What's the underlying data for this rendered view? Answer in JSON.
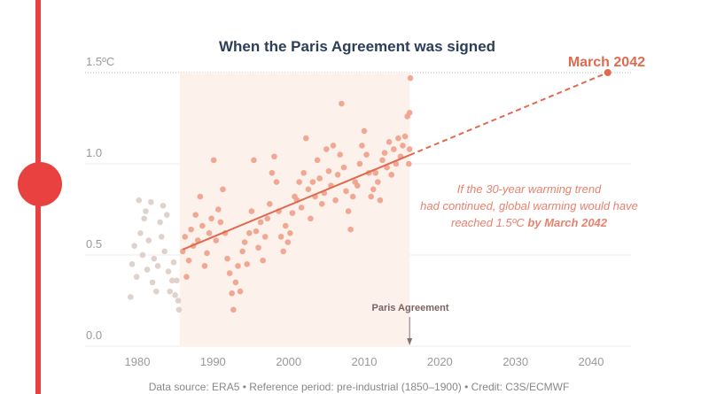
{
  "chart_data": {
    "type": "scatter",
    "title": "When the Paris Agreement was signed",
    "xlim": [
      1975,
      2045
    ],
    "ylim": [
      0,
      1.5
    ],
    "x_ticks": [
      "1980",
      "1990",
      "2000",
      "2010",
      "2020",
      "2030",
      "2040"
    ],
    "y_ticks": [
      {
        "v": 0,
        "label": "0.0"
      },
      {
        "v": 0.5,
        "label": "0.5"
      },
      {
        "v": 1.0,
        "label": "1.0"
      },
      {
        "v": 1.5,
        "label": "1.5ºC"
      }
    ],
    "grid": true,
    "colors": {
      "pre": "#dcccc6",
      "post": "#f0a08a",
      "trend": "#e06a50",
      "shade": "#fdf1ec",
      "title": "#2d3e5a",
      "accent": "#e8413f"
    },
    "shaded_period": [
      1985.6,
      2016
    ],
    "trend": {
      "start": [
        1986,
        0.53
      ],
      "end": [
        2042.2,
        1.5
      ],
      "end_label": "March 2042"
    },
    "marker": {
      "x": 2016,
      "label": "Paris Agreement"
    },
    "annotation": [
      "If the 30-year warming trend",
      "had continued, global warming would have",
      "reached 1.5ºC ",
      "by March 2042"
    ],
    "points": [
      [
        1979.1,
        0.27
      ],
      [
        1979.3,
        0.45
      ],
      [
        1979.6,
        0.55
      ],
      [
        1979.9,
        0.38
      ],
      [
        1980.2,
        0.8
      ],
      [
        1980.4,
        0.62
      ],
      [
        1980.7,
        0.5
      ],
      [
        1980.9,
        0.7
      ],
      [
        1981.1,
        0.74
      ],
      [
        1981.3,
        0.42
      ],
      [
        1981.5,
        0.58
      ],
      [
        1981.8,
        0.79
      ],
      [
        1982.0,
        0.35
      ],
      [
        1982.2,
        0.48
      ],
      [
        1982.5,
        0.3
      ],
      [
        1982.7,
        0.44
      ],
      [
        1983.0,
        0.68
      ],
      [
        1983.2,
        0.6
      ],
      [
        1983.4,
        0.77
      ],
      [
        1983.6,
        0.52
      ],
      [
        1983.9,
        0.72
      ],
      [
        1984.1,
        0.41
      ],
      [
        1984.3,
        0.3
      ],
      [
        1984.6,
        0.36
      ],
      [
        1984.8,
        0.46
      ],
      [
        1985.0,
        0.28
      ],
      [
        1985.2,
        0.36
      ],
      [
        1985.4,
        0.25
      ],
      [
        1985.5,
        0.2
      ],
      [
        1986.0,
        0.52
      ],
      [
        1986.3,
        0.6
      ],
      [
        1986.5,
        0.38
      ],
      [
        1986.8,
        0.47
      ],
      [
        1987.1,
        0.64
      ],
      [
        1987.4,
        0.55
      ],
      [
        1987.7,
        0.72
      ],
      [
        1988.0,
        0.58
      ],
      [
        1988.3,
        0.82
      ],
      [
        1988.6,
        0.66
      ],
      [
        1988.9,
        0.44
      ],
      [
        1989.2,
        0.51
      ],
      [
        1989.5,
        0.62
      ],
      [
        1989.8,
        0.7
      ],
      [
        1990.1,
        1.02
      ],
      [
        1990.4,
        0.58
      ],
      [
        1990.7,
        0.75
      ],
      [
        1991.0,
        0.68
      ],
      [
        1991.3,
        0.86
      ],
      [
        1991.6,
        0.62
      ],
      [
        1991.9,
        0.48
      ],
      [
        1992.2,
        0.4
      ],
      [
        1992.5,
        0.29
      ],
      [
        1992.7,
        0.2
      ],
      [
        1993.0,
        0.35
      ],
      [
        1993.3,
        0.44
      ],
      [
        1993.6,
        0.3
      ],
      [
        1993.9,
        0.52
      ],
      [
        1994.2,
        0.57
      ],
      [
        1994.5,
        0.45
      ],
      [
        1994.8,
        0.62
      ],
      [
        1995.1,
        0.74
      ],
      [
        1995.4,
        1.02
      ],
      [
        1995.7,
        0.63
      ],
      [
        1996.0,
        0.54
      ],
      [
        1996.3,
        0.68
      ],
      [
        1996.6,
        0.47
      ],
      [
        1996.9,
        0.6
      ],
      [
        1997.2,
        0.7
      ],
      [
        1997.5,
        0.78
      ],
      [
        1997.8,
        0.95
      ],
      [
        1998.1,
        1.04
      ],
      [
        1998.4,
        0.9
      ],
      [
        1998.7,
        0.74
      ],
      [
        1999.0,
        0.6
      ],
      [
        1999.3,
        0.52
      ],
      [
        1999.6,
        0.66
      ],
      [
        1999.9,
        0.57
      ],
      [
        2000.2,
        0.62
      ],
      [
        2000.5,
        0.73
      ],
      [
        2000.8,
        0.82
      ],
      [
        2001.1,
        0.8
      ],
      [
        2001.4,
        0.9
      ],
      [
        2001.7,
        0.76
      ],
      [
        2002.0,
        0.95
      ],
      [
        2002.3,
        1.14
      ],
      [
        2002.6,
        0.86
      ],
      [
        2002.9,
        0.7
      ],
      [
        2003.2,
        0.9
      ],
      [
        2003.5,
        0.82
      ],
      [
        2003.8,
        1.02
      ],
      [
        2004.1,
        0.92
      ],
      [
        2004.4,
        0.78
      ],
      [
        2004.7,
        0.84
      ],
      [
        2005.0,
        1.08
      ],
      [
        2005.3,
        0.96
      ],
      [
        2005.6,
        0.88
      ],
      [
        2005.9,
        1.1
      ],
      [
        2006.2,
        0.8
      ],
      [
        2006.5,
        0.94
      ],
      [
        2006.8,
        1.05
      ],
      [
        2007.0,
        1.33
      ],
      [
        2007.3,
        0.98
      ],
      [
        2007.6,
        0.85
      ],
      [
        2007.9,
        0.74
      ],
      [
        2008.2,
        0.64
      ],
      [
        2008.5,
        0.82
      ],
      [
        2008.8,
        0.9
      ],
      [
        2009.1,
        0.88
      ],
      [
        2009.4,
        1.0
      ],
      [
        2009.7,
        1.1
      ],
      [
        2010.0,
        1.18
      ],
      [
        2010.3,
        1.05
      ],
      [
        2010.6,
        0.95
      ],
      [
        2010.9,
        0.82
      ],
      [
        2011.2,
        0.86
      ],
      [
        2011.5,
        0.95
      ],
      [
        2011.8,
        0.9
      ],
      [
        2012.1,
        0.8
      ],
      [
        2012.4,
        1.02
      ],
      [
        2012.7,
        1.06
      ],
      [
        2013.0,
        0.98
      ],
      [
        2013.3,
        1.12
      ],
      [
        2013.6,
        0.94
      ],
      [
        2013.9,
        1.08
      ],
      [
        2014.2,
        1.0
      ],
      [
        2014.5,
        1.14
      ],
      [
        2014.8,
        1.04
      ],
      [
        2015.1,
        1.1
      ],
      [
        2015.4,
        1.15
      ],
      [
        2015.7,
        1.26
      ],
      [
        2015.9,
        1.0
      ],
      [
        2016.0,
        1.28
      ],
      [
        2016.1,
        1.47
      ],
      [
        2016.0,
        1.08
      ]
    ]
  },
  "footer": "Data source: ERA5 • Reference period: pre-industrial (1850–1900) • Credit: C3S/ECMWF"
}
